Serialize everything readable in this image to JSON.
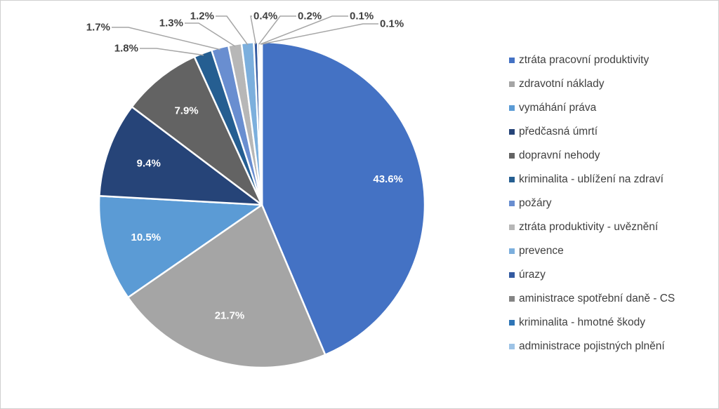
{
  "chart_data": {
    "type": "pie",
    "title": "",
    "legend_position": "right",
    "slices": [
      {
        "name": "ztráta pracovní produktivity",
        "value": 43.6,
        "label": "43.6%",
        "color": "#4472C4"
      },
      {
        "name": "zdravotní náklady",
        "value": 21.7,
        "label": "21.7%",
        "color": "#A5A5A5"
      },
      {
        "name": "vymáhání práva",
        "value": 10.5,
        "label": "10.5%",
        "color": "#5B9BD5"
      },
      {
        "name": "předčasná úmrtí",
        "value": 9.4,
        "label": "9.4%",
        "color": "#264478"
      },
      {
        "name": "dopravní nehody",
        "value": 7.9,
        "label": "7.9%",
        "color": "#636363"
      },
      {
        "name": "kriminalita - ublížení na zdraví",
        "value": 1.8,
        "label": "1.8%",
        "color": "#255E91"
      },
      {
        "name": "požáry",
        "value": 1.7,
        "label": "1.7%",
        "color": "#698ED0"
      },
      {
        "name": "ztráta produktivity - uvěznění",
        "value": 1.3,
        "label": "1.3%",
        "color": "#B7B7B7"
      },
      {
        "name": "prevence",
        "value": 1.2,
        "label": "1.2%",
        "color": "#7CAFDD"
      },
      {
        "name": "úrazy",
        "value": 0.4,
        "label": "0.4%",
        "color": "#335AA1"
      },
      {
        "name": "aministrace spotřební daně - CS",
        "value": 0.2,
        "label": "0.2%",
        "color": "#848484"
      },
      {
        "name": "kriminalita - hmotné škody",
        "value": 0.1,
        "label": "0.1%",
        "color": "#2E75B6"
      },
      {
        "name": "administrace pojistných plnění",
        "value": 0.1,
        "label": "0.1%",
        "color": "#9DC3E6"
      }
    ]
  }
}
